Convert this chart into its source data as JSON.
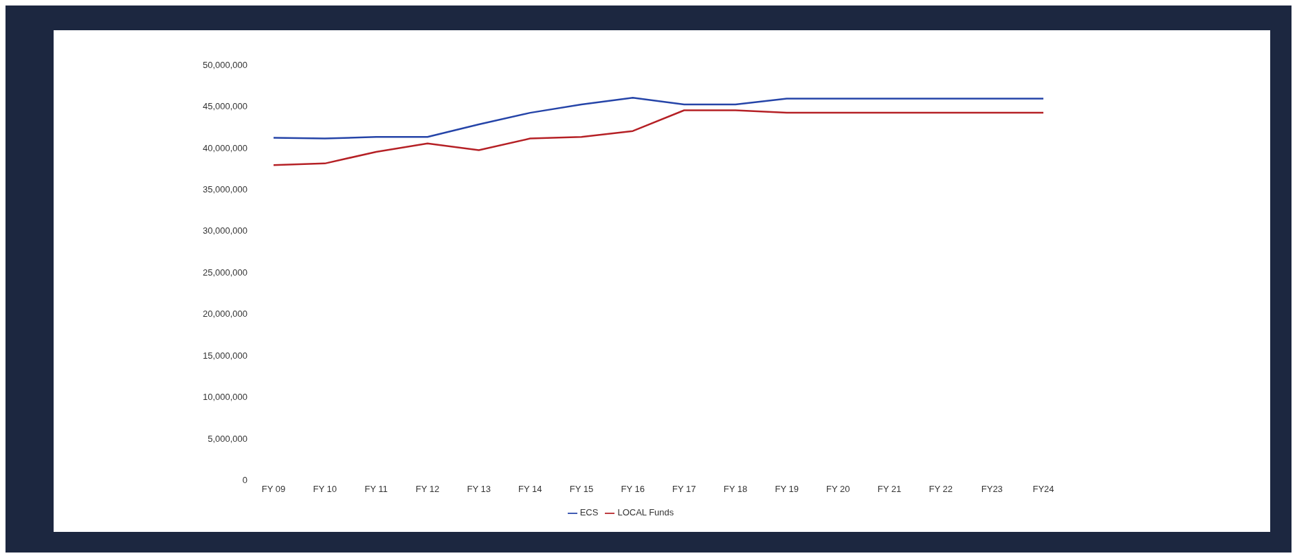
{
  "chart_data": {
    "type": "line",
    "categories": [
      "FY 09",
      "FY 10",
      "FY 11",
      "FY 12",
      "FY 13",
      "FY 14",
      "FY 15",
      "FY 16",
      "FY 17",
      "FY 18",
      "FY 19",
      "FY 20",
      "FY 21",
      "FY 22",
      "FY23",
      "FY24"
    ],
    "series": [
      {
        "name": "ECS",
        "color": "#2544a8",
        "values": [
          41200000,
          41100000,
          41300000,
          41300000,
          42800000,
          44200000,
          45200000,
          46000000,
          45200000,
          45200000,
          45900000,
          45900000,
          45900000,
          45900000,
          45900000,
          45900000
        ]
      },
      {
        "name": "LOCAL Funds",
        "color": "#b52025",
        "values": [
          37900000,
          38100000,
          39500000,
          40500000,
          39700000,
          41100000,
          41300000,
          42000000,
          44500000,
          44500000,
          44200000,
          44200000,
          44200000,
          44200000,
          44200000,
          44200000
        ]
      }
    ],
    "ylim": [
      0,
      50000000
    ],
    "yticks": [
      0,
      {
        "value": 5000000,
        "label": "5,000,000"
      },
      {
        "value": 10000000,
        "label": "10,000,000"
      },
      {
        "value": 15000000,
        "label": "15,000,000"
      },
      {
        "value": 20000000,
        "label": "20,000,000"
      },
      {
        "value": 25000000,
        "label": "25,000,000"
      },
      {
        "value": 30000000,
        "label": "30,000,000"
      },
      {
        "value": 35000000,
        "label": "35,000,000"
      },
      {
        "value": 40000000,
        "label": "40,000,000"
      },
      {
        "value": 45000000,
        "label": "45,000,000"
      },
      {
        "value": 50000000,
        "label": "50,000,000"
      }
    ],
    "grid": false,
    "legend": "bottom",
    "marker": "none",
    "line_style": "solid"
  }
}
